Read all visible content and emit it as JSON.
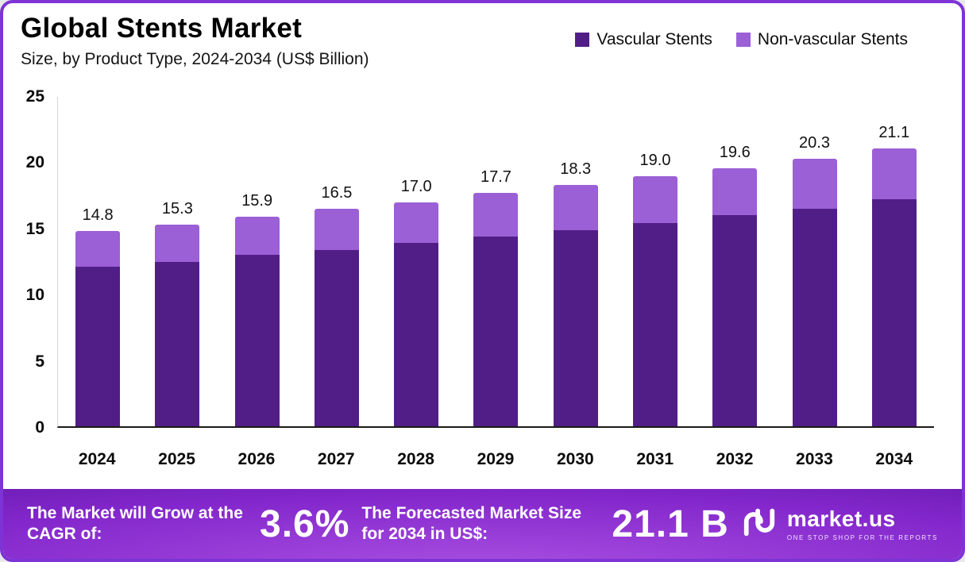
{
  "header": {
    "title": "Global Stents Market",
    "subtitle": "Size, by Product Type, 2024-2034 (US$ Billion)"
  },
  "legend": {
    "items": [
      {
        "label": "Vascular Stents",
        "color": "#511e87"
      },
      {
        "label": "Non-vascular Stents",
        "color": "#9b5fd6"
      }
    ]
  },
  "chart_data": {
    "type": "bar",
    "stacked": true,
    "title": "Global Stents Market Size, by Product Type, 2024-2034 (US$ Billion)",
    "xlabel": "",
    "ylabel": "",
    "categories": [
      "2024",
      "2025",
      "2026",
      "2027",
      "2028",
      "2029",
      "2030",
      "2031",
      "2032",
      "2033",
      "2034"
    ],
    "series": [
      {
        "name": "Vascular Stents",
        "color": "#511e87",
        "values": [
          12.1,
          12.5,
          13.0,
          13.4,
          13.9,
          14.4,
          14.9,
          15.4,
          16.0,
          16.5,
          17.2
        ]
      },
      {
        "name": "Non-vascular Stents",
        "color": "#9b5fd6",
        "values": [
          2.7,
          2.8,
          2.9,
          3.1,
          3.1,
          3.3,
          3.4,
          3.6,
          3.6,
          3.8,
          3.9
        ]
      }
    ],
    "totals": [
      14.8,
      15.3,
      15.9,
      16.5,
      17.0,
      17.7,
      18.3,
      19.0,
      19.6,
      20.3,
      21.1
    ],
    "total_labels": [
      "14.8",
      "15.3",
      "15.9",
      "16.5",
      "17.0",
      "17.7",
      "18.3",
      "19.0",
      "19.6",
      "20.3",
      "21.1"
    ],
    "ylim": [
      0,
      25
    ],
    "yticks": [
      0,
      5,
      10,
      15,
      20,
      25
    ],
    "grid": false,
    "legend_position": "top-right"
  },
  "banner": {
    "cagr_label": "The Market will Grow at the CAGR of:",
    "cagr_value": "3.6%",
    "forecast_label": "The Forecasted Market Size for 2034 in US$:",
    "forecast_value": "21.1 B",
    "brand": "market.us",
    "brand_tagline": "ONE STOP SHOP FOR THE REPORTS"
  },
  "colors": {
    "frame_border": "#7d33d6",
    "vascular": "#511e87",
    "non_vascular": "#9b5fd6"
  }
}
